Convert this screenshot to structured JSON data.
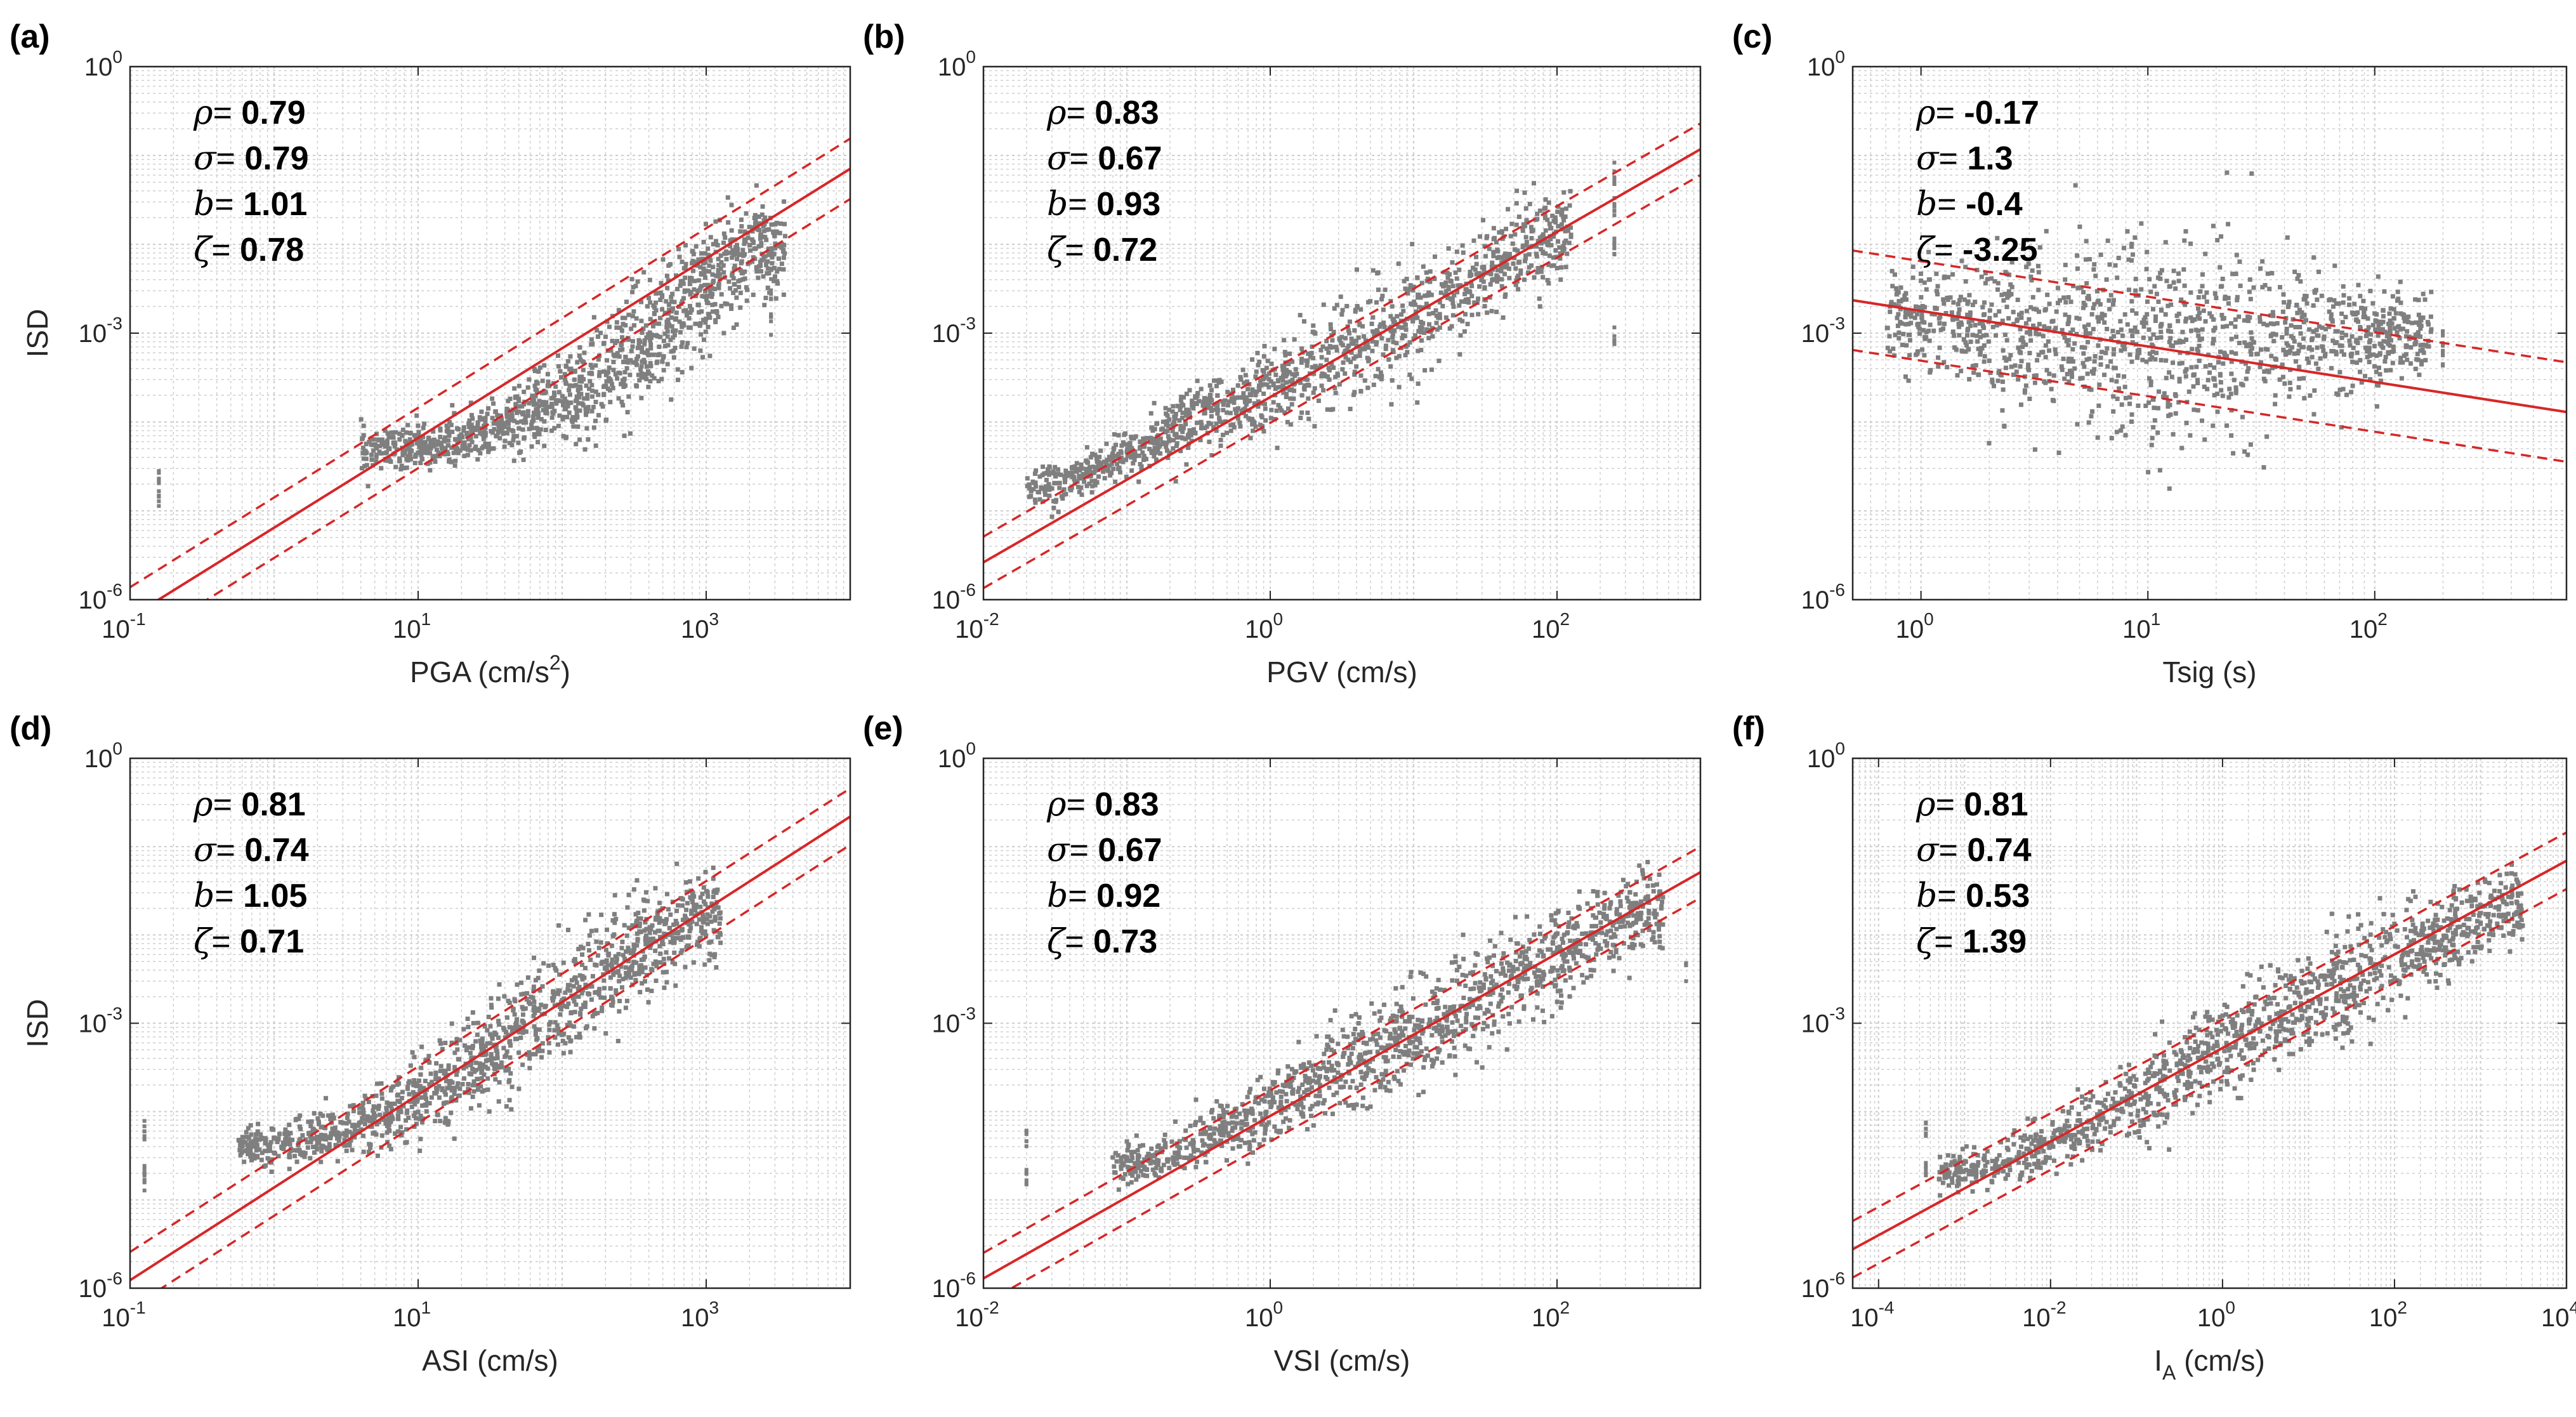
{
  "colors": {
    "scatter": "#7f7f7f",
    "fit": "#d62728",
    "grid": "#cfcfcf",
    "axis": "#262626"
  },
  "chart_data": [
    {
      "type": "scatter",
      "panel_label": "(a)",
      "xlabel": "PGA (cm/s2)",
      "xlabel_base": "PGA (cm/s",
      "xlabel_sup": "2",
      "xlabel_tail": ")",
      "ylabel": "ISD",
      "x_scale": "log",
      "y_scale": "log",
      "xlim": [
        0.1,
        10000
      ],
      "ylim": [
        1e-06,
        1
      ],
      "x_ticks": [
        0.1,
        10,
        1000
      ],
      "x_tick_labels": [
        [
          "10",
          "-1"
        ],
        [
          "10",
          "1"
        ],
        [
          "10",
          "3"
        ]
      ],
      "y_ticks": [
        1e-06,
        0.001,
        1
      ],
      "y_tick_labels": [
        [
          "10",
          "-6"
        ],
        [
          "10",
          "-3"
        ],
        [
          "10",
          "0"
        ]
      ],
      "grid": true,
      "stats": [
        {
          "sym": "ρ",
          "val": "0.79"
        },
        {
          "sym": "σ",
          "val": "0.79"
        },
        {
          "sym": "b",
          "val": "1.01"
        },
        {
          "sym": "ζ",
          "val": "0.78"
        }
      ],
      "fit": {
        "slope": 1.01,
        "intercept": -5.19,
        "offset": 0.34
      },
      "cloud": [
        [
          1.1,
          -4.3
        ],
        [
          1.6,
          -4.05
        ],
        [
          2.1,
          -3.7
        ],
        [
          2.6,
          -3.05
        ],
        [
          3.1,
          -2.35
        ],
        [
          3.3,
          -2.05
        ]
      ],
      "cloud_spread": [
        0.22,
        0.3,
        0.5,
        0.6,
        0.55,
        0.45
      ],
      "cloud_x_range": [
        0.6,
        3.55
      ],
      "strays": [
        [
          -0.8,
          -4.6
        ],
        [
          -0.8,
          -4.9
        ],
        [
          3.45,
          -2.5
        ],
        [
          3.45,
          -2.9
        ]
      ]
    },
    {
      "type": "scatter",
      "panel_label": "(b)",
      "xlabel": "PGV (cm/s)",
      "ylabel": "",
      "x_scale": "log",
      "y_scale": "log",
      "xlim": [
        0.01,
        1000
      ],
      "ylim": [
        1e-06,
        1
      ],
      "x_ticks": [
        0.01,
        1,
        100
      ],
      "x_tick_labels": [
        [
          "10",
          "-2"
        ],
        [
          "10",
          "0"
        ],
        [
          "10",
          "2"
        ]
      ],
      "y_ticks": [
        1e-06,
        0.001,
        1
      ],
      "y_tick_labels": [
        [
          "10",
          "-6"
        ],
        [
          "10",
          "-3"
        ],
        [
          "10",
          "0"
        ]
      ],
      "grid": true,
      "stats": [
        {
          "sym": "ρ",
          "val": "0.83"
        },
        {
          "sym": "σ",
          "val": "0.67"
        },
        {
          "sym": "b",
          "val": "0.93"
        },
        {
          "sym": "ζ",
          "val": "0.72"
        }
      ],
      "fit": {
        "slope": 0.93,
        "intercept": -3.72,
        "offset": 0.29
      },
      "cloud": [
        [
          -1.45,
          -4.7
        ],
        [
          -0.8,
          -4.2
        ],
        [
          -0.2,
          -3.75
        ],
        [
          0.5,
          -3.25
        ],
        [
          1.2,
          -2.65
        ],
        [
          1.9,
          -1.95
        ]
      ],
      "cloud_spread": [
        0.2,
        0.28,
        0.4,
        0.5,
        0.55,
        0.5
      ],
      "cloud_x_range": [
        -1.7,
        2.1
      ],
      "strays": [
        [
          2.4,
          -1.2
        ],
        [
          2.4,
          -1.6
        ],
        [
          2.4,
          -2.0
        ],
        [
          2.4,
          -3.0
        ]
      ]
    },
    {
      "type": "scatter",
      "panel_label": "(c)",
      "xlabel": "Tsig (s)",
      "ylabel": "",
      "x_scale": "log",
      "y_scale": "log",
      "xlim": [
        0.5,
        700
      ],
      "ylim": [
        1e-06,
        1
      ],
      "x_ticks": [
        1,
        10,
        100
      ],
      "x_tick_labels": [
        [
          "10",
          "0"
        ],
        [
          "10",
          "1"
        ],
        [
          "10",
          "2"
        ]
      ],
      "y_ticks": [
        1e-06,
        0.001,
        1
      ],
      "y_tick_labels": [
        [
          "10",
          "-6"
        ],
        [
          "10",
          "-3"
        ],
        [
          "10",
          "0"
        ]
      ],
      "grid": true,
      "stats": [
        {
          "sym": "ρ",
          "val": "-0.17"
        },
        {
          "sym": "σ",
          "val": "1.3"
        },
        {
          "sym": "b",
          "val": "-0.4"
        },
        {
          "sym": "ζ",
          "val": "-3.25"
        }
      ],
      "fit": {
        "slope": -0.4,
        "intercept": -2.75,
        "offset": 0.56
      },
      "cloud": [
        [
          -0.1,
          -2.8
        ],
        [
          0.3,
          -2.95
        ],
        [
          0.7,
          -3.05
        ],
        [
          1.0,
          -3.2
        ],
        [
          1.3,
          -3.1
        ],
        [
          1.7,
          -3.05
        ],
        [
          2.1,
          -3.0
        ]
      ],
      "cloud_spread": [
        0.55,
        0.75,
        0.95,
        1.05,
        1.0,
        0.75,
        0.4
      ],
      "cloud_x_range": [
        -0.15,
        2.25
      ],
      "strays": [
        [
          2.3,
          -3.1
        ],
        [
          2.3,
          -3.3
        ]
      ]
    },
    {
      "type": "scatter",
      "panel_label": "(d)",
      "xlabel": "ASI (cm/s)",
      "ylabel": "ISD",
      "x_scale": "log",
      "y_scale": "log",
      "xlim": [
        0.1,
        10000
      ],
      "ylim": [
        1e-06,
        1
      ],
      "x_ticks": [
        0.1,
        10,
        1000
      ],
      "x_tick_labels": [
        [
          "10",
          "-1"
        ],
        [
          "10",
          "1"
        ],
        [
          "10",
          "3"
        ]
      ],
      "y_ticks": [
        1e-06,
        0.001,
        1
      ],
      "y_tick_labels": [
        [
          "10",
          "-6"
        ],
        [
          "10",
          "-3"
        ],
        [
          "10",
          "0"
        ]
      ],
      "grid": true,
      "stats": [
        {
          "sym": "ρ",
          "val": "0.81"
        },
        {
          "sym": "σ",
          "val": "0.74"
        },
        {
          "sym": "b",
          "val": "1.05"
        },
        {
          "sym": "ζ",
          "val": "0.71"
        }
      ],
      "fit": {
        "slope": 1.05,
        "intercept": -4.86,
        "offset": 0.32
      },
      "cloud": [
        [
          0.0,
          -4.4
        ],
        [
          0.6,
          -4.15
        ],
        [
          1.2,
          -3.7
        ],
        [
          1.8,
          -3.0
        ],
        [
          2.4,
          -2.3
        ],
        [
          2.9,
          -1.8
        ]
      ],
      "cloud_spread": [
        0.2,
        0.3,
        0.45,
        0.55,
        0.55,
        0.45
      ],
      "cloud_x_range": [
        -0.25,
        3.1
      ],
      "strays": [
        [
          -0.9,
          -4.2
        ],
        [
          -0.9,
          -4.6
        ],
        [
          -0.9,
          -4.8
        ]
      ]
    },
    {
      "type": "scatter",
      "panel_label": "(e)",
      "xlabel": "VSI (cm/s)",
      "ylabel": "",
      "x_scale": "log",
      "y_scale": "log",
      "xlim": [
        0.01,
        1000
      ],
      "ylim": [
        1e-06,
        1
      ],
      "x_ticks": [
        0.01,
        1,
        100
      ],
      "x_tick_labels": [
        [
          "10",
          "-2"
        ],
        [
          "10",
          "0"
        ],
        [
          "10",
          "2"
        ]
      ],
      "y_ticks": [
        1e-06,
        0.001,
        1
      ],
      "y_tick_labels": [
        [
          "10",
          "-6"
        ],
        [
          "10",
          "-3"
        ],
        [
          "10",
          "0"
        ]
      ],
      "grid": true,
      "stats": [
        {
          "sym": "ρ",
          "val": "0.83"
        },
        {
          "sym": "σ",
          "val": "0.67"
        },
        {
          "sym": "b",
          "val": "0.92"
        },
        {
          "sym": "ζ",
          "val": "0.73"
        }
      ],
      "fit": {
        "slope": 0.92,
        "intercept": -4.05,
        "offset": 0.29
      },
      "cloud": [
        [
          -0.9,
          -4.6
        ],
        [
          -0.3,
          -4.2
        ],
        [
          0.4,
          -3.6
        ],
        [
          1.1,
          -3.05
        ],
        [
          1.8,
          -2.4
        ],
        [
          2.6,
          -1.75
        ]
      ],
      "cloud_spread": [
        0.2,
        0.3,
        0.45,
        0.55,
        0.5,
        0.4
      ],
      "cloud_x_range": [
        -1.1,
        2.75
      ],
      "strays": [
        [
          -1.7,
          -4.3
        ],
        [
          -1.7,
          -4.7
        ],
        [
          2.9,
          -2.4
        ]
      ]
    },
    {
      "type": "scatter",
      "panel_label": "(f)",
      "xlabel": "IA (cm/s)",
      "xlabel_base": "I",
      "xlabel_sub": "A",
      "xlabel_tail": " (cm/s)",
      "ylabel": "",
      "x_scale": "log",
      "y_scale": "log",
      "xlim": [
        5e-05,
        10000
      ],
      "ylim": [
        1e-06,
        1
      ],
      "x_ticks": [
        0.0001,
        0.01,
        1,
        100,
        10000
      ],
      "x_tick_labels": [
        [
          "10",
          "-4"
        ],
        [
          "10",
          "-2"
        ],
        [
          "10",
          "0"
        ],
        [
          "10",
          "2"
        ],
        [
          "10",
          "4"
        ]
      ],
      "y_ticks": [
        1e-06,
        0.001,
        1
      ],
      "y_tick_labels": [
        [
          "10",
          "-6"
        ],
        [
          "10",
          "-3"
        ],
        [
          "10",
          "0"
        ]
      ],
      "grid": true,
      "stats": [
        {
          "sym": "ρ",
          "val": "0.81"
        },
        {
          "sym": "σ",
          "val": "0.74"
        },
        {
          "sym": "b",
          "val": "0.53"
        },
        {
          "sym": "ζ",
          "val": "1.39"
        }
      ],
      "fit": {
        "slope": 0.53,
        "intercept": -3.28,
        "offset": 0.32
      },
      "cloud": [
        [
          -2.8,
          -4.7
        ],
        [
          -1.8,
          -4.25
        ],
        [
          -0.8,
          -3.75
        ],
        [
          0.3,
          -3.15
        ],
        [
          1.4,
          -2.55
        ],
        [
          2.8,
          -1.85
        ],
        [
          3.3,
          -1.65
        ]
      ],
      "cloud_spread": [
        0.2,
        0.3,
        0.4,
        0.5,
        0.55,
        0.45,
        0.35
      ],
      "cloud_x_range": [
        -3.3,
        3.5
      ],
      "strays": [
        [
          -3.45,
          -4.2
        ],
        [
          -3.45,
          -4.6
        ]
      ]
    }
  ]
}
